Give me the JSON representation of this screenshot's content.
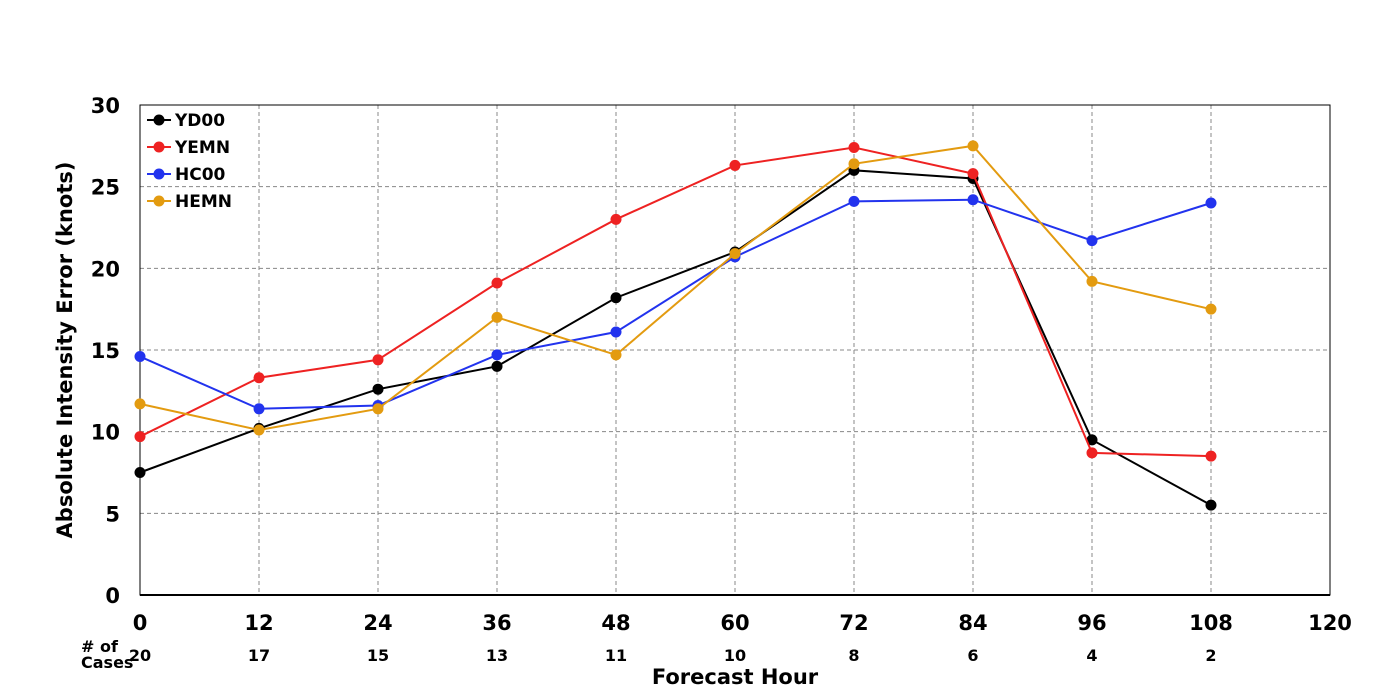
{
  "chart_data": {
    "type": "line",
    "title": "",
    "xlabel": "Forecast Hour",
    "ylabel": "Absolute Intensity Error (knots)",
    "xlim": [
      0,
      120
    ],
    "ylim": [
      0,
      30
    ],
    "x_ticks": [
      0,
      12,
      24,
      36,
      48,
      60,
      72,
      84,
      96,
      108,
      120
    ],
    "y_ticks": [
      0,
      5,
      10,
      15,
      20,
      25,
      30
    ],
    "grid": true,
    "legend_position": "top-left",
    "cases_label_line1": "# of",
    "cases_label_line2": "Cases",
    "cases_x": [
      0,
      12,
      24,
      36,
      48,
      60,
      72,
      84,
      96,
      108
    ],
    "cases": [
      20,
      17,
      15,
      13,
      11,
      10,
      8,
      6,
      4,
      2
    ],
    "x": [
      0,
      12,
      24,
      36,
      48,
      60,
      72,
      84,
      96,
      108
    ],
    "series": [
      {
        "name": "YD00",
        "color": "#000000",
        "values": [
          7.5,
          10.2,
          12.6,
          14.0,
          18.2,
          21.0,
          26.0,
          25.5,
          9.5,
          5.5
        ]
      },
      {
        "name": "YEMN",
        "color": "#ee2222",
        "values": [
          9.7,
          13.3,
          14.4,
          19.1,
          23.0,
          26.3,
          27.4,
          25.8,
          8.7,
          8.5
        ]
      },
      {
        "name": "HC00",
        "color": "#2233ee",
        "values": [
          14.6,
          11.4,
          11.6,
          14.7,
          16.1,
          20.7,
          24.1,
          24.2,
          21.7,
          24.0
        ]
      },
      {
        "name": "HEMN",
        "color": "#e39b10",
        "values": [
          11.7,
          10.1,
          11.4,
          17.0,
          14.7,
          20.9,
          26.4,
          27.5,
          19.2,
          17.5
        ]
      }
    ]
  }
}
